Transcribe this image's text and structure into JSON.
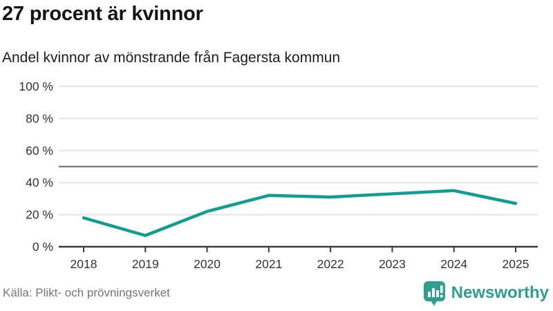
{
  "title": "27 procent är kvinnor",
  "subtitle": "Andel kvinnor av mönstrande från Fagersta kommun",
  "footer": {
    "source": "Källa: Plikt- och prövningsverket",
    "brand": "Newsworthy"
  },
  "colors": {
    "line": "#0f9e91",
    "grid": "#e4e4e4",
    "reference_line": "#808080",
    "axis": "#3b3b3b",
    "tick_text": "#333333",
    "brand_teal": "#2f9e8f",
    "source_text": "#767676"
  },
  "chart_data": {
    "type": "line",
    "categories": [
      "2018",
      "2019",
      "2020",
      "2021",
      "2022",
      "2023",
      "2024",
      "2025"
    ],
    "series": [
      {
        "name": "Andel kvinnor",
        "values": [
          18,
          7,
          22,
          32,
          31,
          33,
          35,
          27
        ]
      }
    ],
    "title": "27 procent är kvinnor",
    "subtitle": "Andel kvinnor av mönstrande från Fagersta kommun",
    "xlabel": "",
    "ylabel": "",
    "ylim": [
      0,
      100
    ],
    "y_ticks": [
      0,
      20,
      40,
      60,
      80,
      100
    ],
    "y_tick_suffix": " %",
    "reference_line": 50,
    "grid": "horizontal",
    "legend": "none"
  }
}
